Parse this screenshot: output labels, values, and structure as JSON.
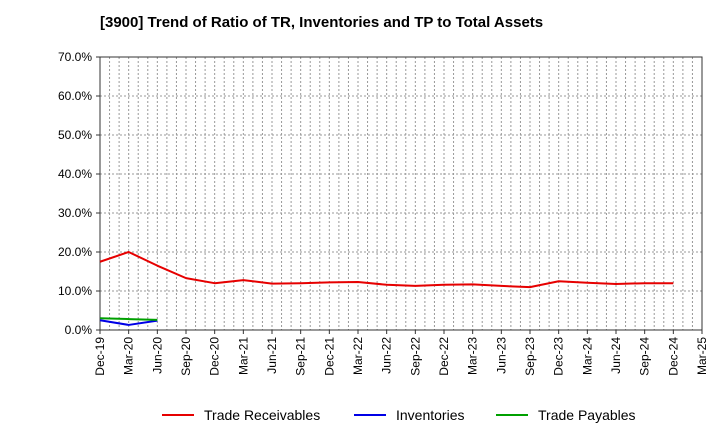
{
  "chart_data": {
    "type": "line",
    "title": "[3900]  Trend of Ratio of TR, Inventories and TP to Total Assets",
    "xlabel": "",
    "ylabel": "",
    "ylim": [
      0,
      70
    ],
    "y_ticks": [
      "0.0%",
      "10.0%",
      "20.0%",
      "30.0%",
      "40.0%",
      "50.0%",
      "60.0%",
      "70.0%"
    ],
    "x_ticks": [
      "Dec-19",
      "Mar-20",
      "Jun-20",
      "Sep-20",
      "Dec-20",
      "Mar-21",
      "Jun-21",
      "Sep-21",
      "Dec-21",
      "Mar-22",
      "Jun-22",
      "Sep-22",
      "Dec-22",
      "Mar-23",
      "Jun-23",
      "Sep-23",
      "Dec-23",
      "Mar-24",
      "Jun-24",
      "Sep-24",
      "Dec-24",
      "Mar-25"
    ],
    "grid": true,
    "legend_position": "bottom",
    "series": [
      {
        "name": "Trade Receivables",
        "color": "#e60000",
        "values": [
          17.5,
          20.0,
          16.5,
          13.3,
          12.0,
          12.8,
          11.9,
          12.0,
          12.2,
          12.3,
          11.6,
          11.3,
          11.6,
          11.7,
          11.3,
          11.0,
          12.5,
          12.1,
          11.8,
          12.0,
          12.0
        ]
      },
      {
        "name": "Inventories",
        "color": "#0000e6",
        "values": [
          2.5,
          1.3,
          2.4
        ]
      },
      {
        "name": "Trade Payables",
        "color": "#00a000",
        "values": [
          3.0,
          2.8,
          2.6
        ]
      }
    ]
  }
}
